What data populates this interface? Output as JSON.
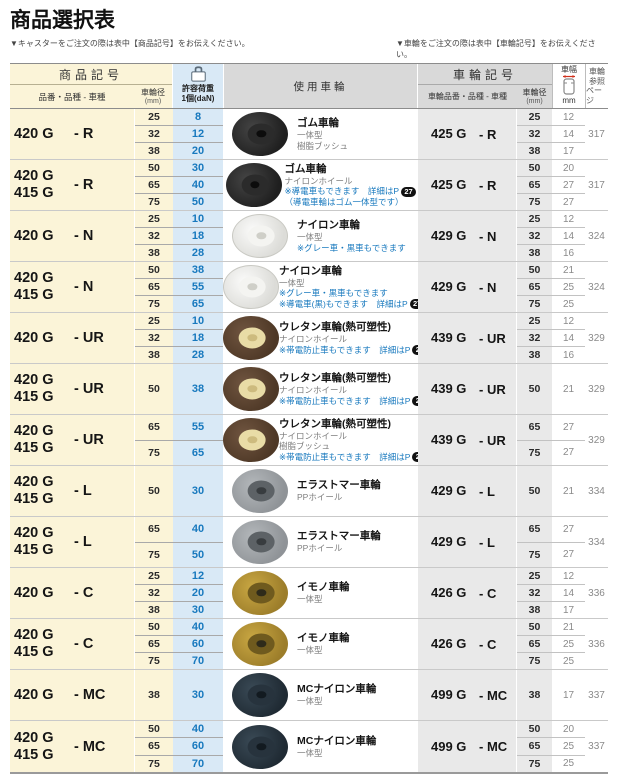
{
  "page": {
    "title": "商品選択表",
    "note_left": "▼キャスターをご注文の際は表中【商品記号】をお伝えください。",
    "note_right": "▼車輪をご注文の際は表中【車輪記号】をお伝えください。"
  },
  "header": {
    "product_code": "商品記号",
    "product_sub": "品番・品種 - 車種",
    "diam": "車輪径",
    "diam_unit": "(mm)",
    "load_l1": "許容荷重",
    "load_l2": "1個(daN)",
    "use_wheel": "使用車輪",
    "wheel_code": "車輪記号",
    "wheel_code_sub": "車輪品番・品種 - 車種",
    "wheel_diam": "車輪径",
    "wheel_diam_unit": "(mm)",
    "width_label": "車幅",
    "width_unit": "mm",
    "page_ref_l1": "車輪",
    "page_ref_l2": "参照",
    "page_ref_l3": "ページ"
  },
  "colors": {
    "accent_blue": "#1879BE",
    "cream_bg": "#FBF4D8",
    "light_blue_bg": "#D9E9F6",
    "header_gray_bg": "#D9D9D9",
    "cell_gray_bg": "#E9E9E9",
    "badge_bg": "#111111",
    "width_arrow_red": "#D0321E"
  },
  "icons": {
    "load_icon": "weight-icon",
    "width_icon": "wheel-width-icon"
  },
  "groups": [
    {
      "codes": [
        "420 G"
      ],
      "suffix": "- R",
      "diam": [
        "25",
        "32",
        "38"
      ],
      "load": [
        "8",
        "12",
        "20"
      ],
      "wheel": {
        "style": "r",
        "name": "ゴム車輪",
        "sub": [
          "一体型",
          "樹脂ブッシュ"
        ],
        "notes": []
      },
      "right": {
        "codes": [
          "425 G"
        ],
        "suffix": "- R",
        "diam": [
          "25",
          "32",
          "38"
        ],
        "width": [
          "12",
          "14",
          "17"
        ],
        "page": "317"
      }
    },
    {
      "codes": [
        "420 G",
        "415 G"
      ],
      "suffix": "- R",
      "diam": [
        "50",
        "65",
        "75"
      ],
      "load": [
        "30",
        "40",
        "50"
      ],
      "wheel": {
        "style": "r",
        "name": "ゴム車輪",
        "sub": [
          "ナイロンホイール"
        ],
        "notes": [
          {
            "text": "※導電車もできます　詳細はP",
            "badge": "27"
          },
          {
            "text": "（導電車輪はゴム一体型です）"
          }
        ]
      },
      "right": {
        "codes": [
          "425 G"
        ],
        "suffix": "- R",
        "diam": [
          "50",
          "65",
          "75"
        ],
        "width": [
          "20",
          "27",
          "27"
        ],
        "page": "317"
      }
    },
    {
      "codes": [
        "420 G"
      ],
      "suffix": "- N",
      "diam": [
        "25",
        "32",
        "38"
      ],
      "load": [
        "10",
        "18",
        "28"
      ],
      "wheel": {
        "style": "n",
        "name": "ナイロン車輪",
        "sub": [
          "一体型"
        ],
        "notes": [
          {
            "text": "※グレー車・黒車もできます"
          }
        ]
      },
      "right": {
        "codes": [
          "429 G"
        ],
        "suffix": "- N",
        "diam": [
          "25",
          "32",
          "38"
        ],
        "width": [
          "12",
          "14",
          "16"
        ],
        "page": "324"
      }
    },
    {
      "codes": [
        "420 G",
        "415 G"
      ],
      "suffix": "- N",
      "diam": [
        "50",
        "65",
        "75"
      ],
      "load": [
        "38",
        "55",
        "65"
      ],
      "wheel": {
        "style": "n",
        "name": "ナイロン車輪",
        "sub": [
          "一体型"
        ],
        "notes": [
          {
            "text": "※グレー車・黒車もできます"
          },
          {
            "text": "※導電車(黒)もできます　詳細はP",
            "badge": "27"
          }
        ]
      },
      "right": {
        "codes": [
          "429 G"
        ],
        "suffix": "- N",
        "diam": [
          "50",
          "65",
          "75"
        ],
        "width": [
          "21",
          "25",
          "25"
        ],
        "page": "324"
      }
    },
    {
      "codes": [
        "420 G"
      ],
      "suffix": "- UR",
      "diam": [
        "25",
        "32",
        "38"
      ],
      "load": [
        "10",
        "18",
        "28"
      ],
      "wheel": {
        "style": "ur",
        "name": "ウレタン車輪(熱可塑性)",
        "sub": [
          "ナイロンホイール"
        ],
        "notes": [
          {
            "text": "※帯電防止車もできます　詳細はP",
            "badge": "27"
          }
        ]
      },
      "right": {
        "codes": [
          "439 G"
        ],
        "suffix": "- UR",
        "diam": [
          "25",
          "32",
          "38"
        ],
        "width": [
          "12",
          "14",
          "16"
        ],
        "page": "329"
      }
    },
    {
      "codes": [
        "420 G",
        "415 G"
      ],
      "suffix": "- UR",
      "diam": [
        "50"
      ],
      "load": [
        "38"
      ],
      "wheel": {
        "style": "ur",
        "name": "ウレタン車輪(熱可塑性)",
        "sub": [
          "ナイロンホイール"
        ],
        "notes": [
          {
            "text": "※帯電防止車もできます　詳細はP",
            "badge": "27"
          }
        ]
      },
      "right": {
        "codes": [
          "439 G"
        ],
        "suffix": "- UR",
        "diam": [
          "50"
        ],
        "width": [
          "21"
        ],
        "page": "329"
      }
    },
    {
      "codes": [
        "420 G",
        "415 G"
      ],
      "suffix": "- UR",
      "diam": [
        "65",
        "75"
      ],
      "load": [
        "55",
        "65"
      ],
      "wheel": {
        "style": "ur",
        "name": "ウレタン車輪(熱可塑性)",
        "sub": [
          "ナイロンホイール",
          "樹脂ブッシュ"
        ],
        "notes": [
          {
            "text": "※帯電防止車もできます　詳細はP",
            "badge": "27"
          }
        ]
      },
      "right": {
        "codes": [
          "439 G"
        ],
        "suffix": "- UR",
        "diam": [
          "65",
          "75"
        ],
        "width": [
          "27",
          "27"
        ],
        "page": "329"
      }
    },
    {
      "codes": [
        "420 G",
        "415 G"
      ],
      "suffix": "- L",
      "diam": [
        "50"
      ],
      "load": [
        "30"
      ],
      "wheel": {
        "style": "l",
        "name": "エラストマー車輪",
        "sub": [
          "PPホイール"
        ],
        "notes": []
      },
      "right": {
        "codes": [
          "429 G"
        ],
        "suffix": "- L",
        "diam": [
          "50"
        ],
        "width": [
          "21"
        ],
        "page": "334"
      }
    },
    {
      "codes": [
        "420 G",
        "415 G"
      ],
      "suffix": "- L",
      "diam": [
        "65",
        "75"
      ],
      "load": [
        "40",
        "50"
      ],
      "wheel": {
        "style": "l",
        "name": "エラストマー車輪",
        "sub": [
          "PPホイール"
        ],
        "notes": []
      },
      "right": {
        "codes": [
          "429 G"
        ],
        "suffix": "- L",
        "diam": [
          "65",
          "75"
        ],
        "width": [
          "27",
          "27"
        ],
        "page": "334"
      }
    },
    {
      "codes": [
        "420 G"
      ],
      "suffix": "- C",
      "diam": [
        "25",
        "32",
        "38"
      ],
      "load": [
        "12",
        "20",
        "30"
      ],
      "wheel": {
        "style": "c",
        "name": "イモノ車輪",
        "sub": [
          "一体型"
        ],
        "notes": []
      },
      "right": {
        "codes": [
          "426 G"
        ],
        "suffix": "- C",
        "diam": [
          "25",
          "32",
          "38"
        ],
        "width": [
          "12",
          "14",
          "17"
        ],
        "page": "336"
      }
    },
    {
      "codes": [
        "420 G",
        "415 G"
      ],
      "suffix": "- C",
      "diam": [
        "50",
        "65",
        "75"
      ],
      "load": [
        "40",
        "60",
        "70"
      ],
      "wheel": {
        "style": "c",
        "name": "イモノ車輪",
        "sub": [
          "一体型"
        ],
        "notes": []
      },
      "right": {
        "codes": [
          "426 G"
        ],
        "suffix": "- C",
        "diam": [
          "50",
          "65",
          "75"
        ],
        "width": [
          "21",
          "25",
          "25"
        ],
        "page": "336"
      }
    },
    {
      "codes": [
        "420 G"
      ],
      "suffix": "- MC",
      "diam": [
        "38"
      ],
      "load": [
        "30"
      ],
      "wheel": {
        "style": "mc",
        "name": "MCナイロン車輪",
        "sub": [
          "一体型"
        ],
        "notes": []
      },
      "right": {
        "codes": [
          "499 G"
        ],
        "suffix": "- MC",
        "diam": [
          "38"
        ],
        "width": [
          "17"
        ],
        "page": "337"
      }
    },
    {
      "codes": [
        "420 G",
        "415 G"
      ],
      "suffix": "- MC",
      "diam": [
        "50",
        "65",
        "75"
      ],
      "load": [
        "40",
        "60",
        "70"
      ],
      "wheel": {
        "style": "mc",
        "name": "MCナイロン車輪",
        "sub": [
          "一体型"
        ],
        "notes": []
      },
      "right": {
        "codes": [
          "499 G"
        ],
        "suffix": "- MC",
        "diam": [
          "50",
          "65",
          "75"
        ],
        "width": [
          "20",
          "25",
          "25"
        ],
        "page": "337"
      }
    }
  ]
}
